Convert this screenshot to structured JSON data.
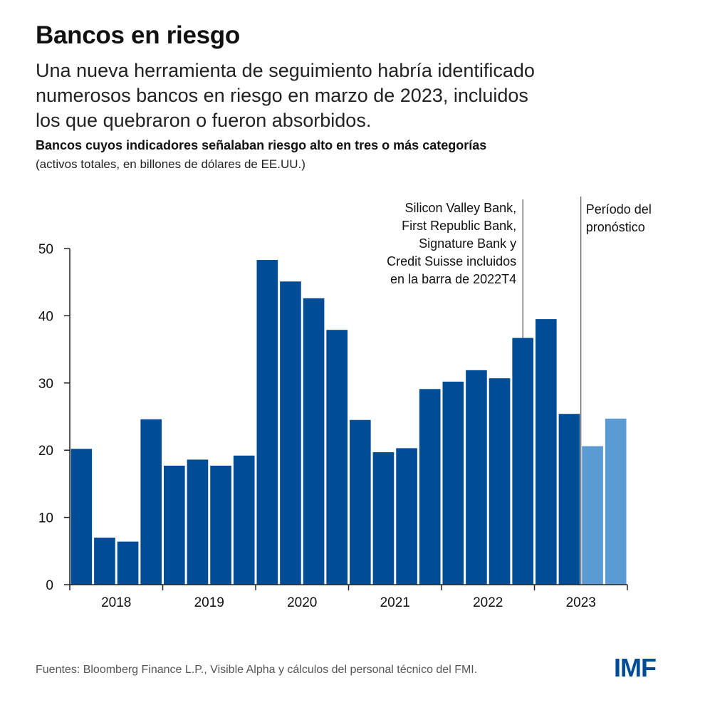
{
  "header": {
    "title": "Bancos en riesgo",
    "subtitle_lines": [
      "Una nueva herramienta de seguimiento habría identificado",
      "numerosos bancos en riesgo en marzo de 2023, incluidos",
      "los que quebraron o fueron absorbidos."
    ]
  },
  "chart_data": {
    "type": "bar",
    "title": "Bancos cuyos indicadores señalaban riesgo alto en tres o más categorías",
    "subtitle": "(activos totales, en billones de dólares de EE.UU.)",
    "xlabel": "",
    "ylabel": "",
    "ylim": [
      0,
      50
    ],
    "yticks": [
      0,
      10,
      20,
      30,
      40,
      50
    ],
    "grid": false,
    "x": [
      "2018T1",
      "2018T2",
      "2018T3",
      "2018T4",
      "2019T1",
      "2019T2",
      "2019T3",
      "2019T4",
      "2020T1",
      "2020T2",
      "2020T3",
      "2020T4",
      "2021T1",
      "2021T2",
      "2021T3",
      "2021T4",
      "2022T1",
      "2022T2",
      "2022T3",
      "2022T4",
      "2023T1",
      "2023T2",
      "2023T3",
      "2023T4"
    ],
    "values": [
      20.2,
      7.0,
      6.4,
      24.6,
      17.7,
      18.6,
      17.7,
      19.2,
      48.3,
      45.1,
      42.6,
      37.9,
      24.5,
      19.7,
      20.3,
      29.1,
      30.2,
      31.9,
      30.7,
      36.7,
      39.5,
      25.4,
      20.6,
      24.7
    ],
    "forecast_flags": [
      false,
      false,
      false,
      false,
      false,
      false,
      false,
      false,
      false,
      false,
      false,
      false,
      false,
      false,
      false,
      false,
      false,
      false,
      false,
      false,
      false,
      false,
      true,
      true
    ],
    "year_labels": [
      "2018",
      "2019",
      "2020",
      "2021",
      "2022",
      "2023"
    ],
    "annotations": [
      {
        "category": "2022T4",
        "lines": [
          "Silicon Valley Bank,",
          "First Republic Bank,",
          "Signature Bank y",
          "Credit Suisse incluidos",
          "en la barra de 2022T4"
        ]
      },
      {
        "category": "2023T3",
        "lines": [
          "Período del",
          "pronóstico"
        ]
      }
    ],
    "colors": {
      "actual": "#004c97",
      "forecast": "#5a9bd3",
      "axis": "#222222",
      "annotation_line": "#333333"
    }
  },
  "footer": {
    "source": "Fuentes: Bloomberg Finance L.P., Visible Alpha y cálculos del personal técnico del FMI.",
    "logo_text": "IMF",
    "logo_color": "#004c97"
  }
}
